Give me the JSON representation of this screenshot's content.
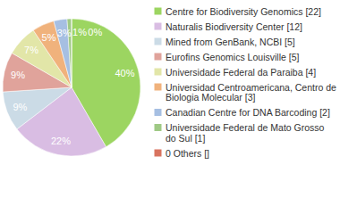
{
  "chart_data": {
    "type": "pie",
    "categories": [
      "Centre for Biodiversity Genomics [22]",
      "Naturalis Biodiversity Center [12]",
      "Mined from GenBank, NCBI [5]",
      "Eurofins Genomics Louisville [5]",
      "Universidade Federal da Paraiba [4]",
      "Universidad Centroamericana, Centro de Biologia Molecular [3]",
      "Canadian Centre for DNA Barcoding [2]",
      "Universidade Federal de Mato Grosso do Sul [1]",
      "0 Others []"
    ],
    "values": [
      40,
      22,
      9,
      9,
      7,
      5,
      3,
      1,
      0
    ],
    "value_labels": [
      "40%",
      "22%",
      "9%",
      "9%",
      "7%",
      "5%",
      "3%",
      "1%",
      "0%"
    ],
    "colors": [
      "#9cd561",
      "#d9bde3",
      "#cbdbe6",
      "#e0a39b",
      "#e2e6a8",
      "#f0b27c",
      "#a6bfe2",
      "#9fc985",
      "#d8735f"
    ],
    "data_labels": true,
    "legend": "right"
  }
}
